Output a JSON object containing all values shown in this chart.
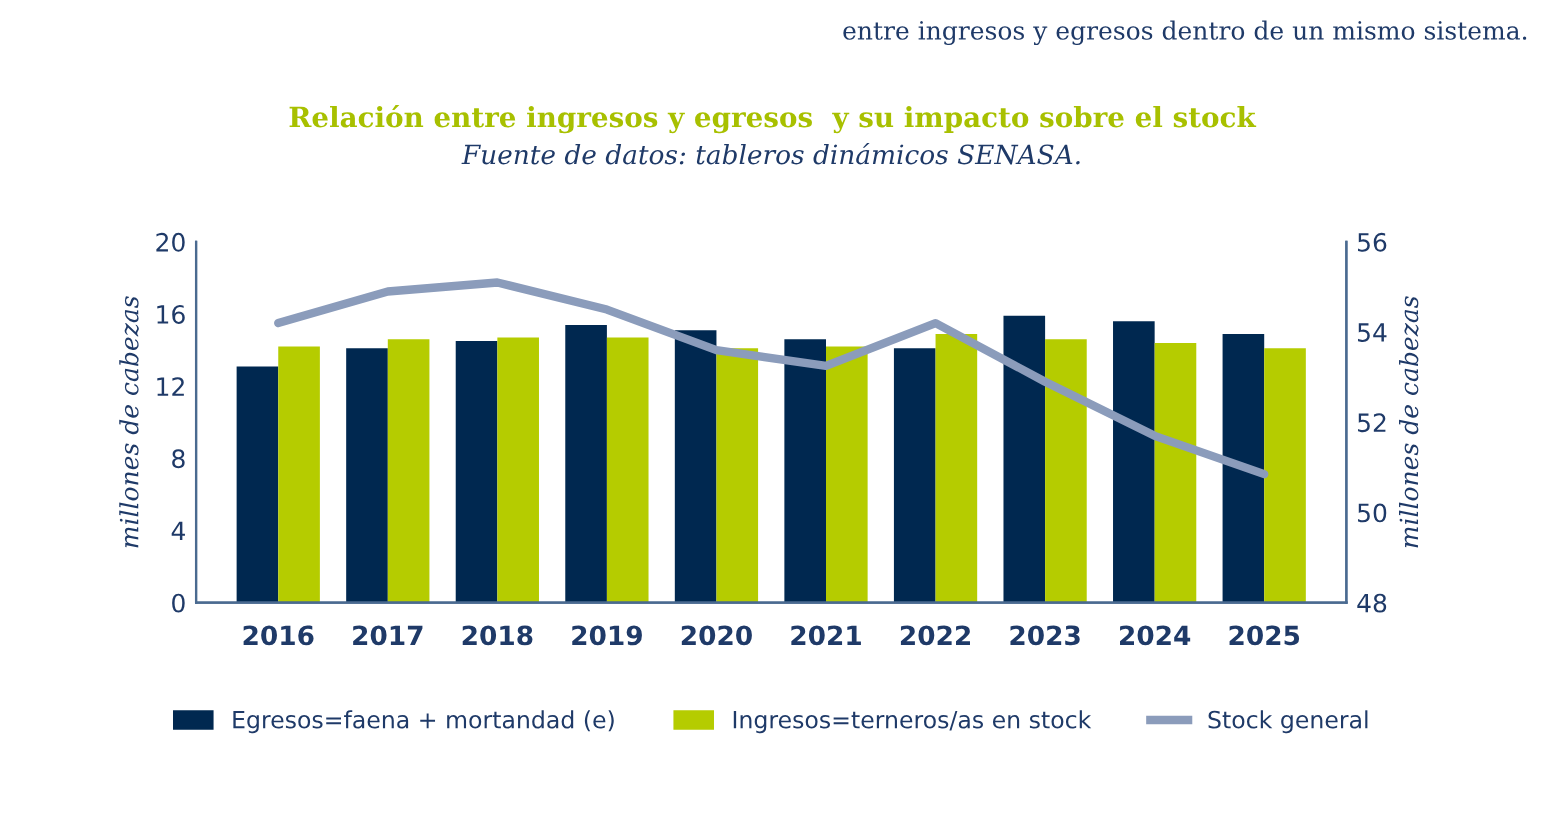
{
  "chart_data": {
    "type": "bar",
    "title": "Relación entre ingresos y egresos  y su impacto sobre el stock",
    "subtitle": "Fuente de datos: tableros dinámicos SENASA.",
    "annotations": [
      "entre ingresos y egresos dentro de un mismo sistema."
    ],
    "ylabel": "millones de cabezas",
    "y2label": "millones de cabezas",
    "categories": [
      "2016",
      "2017",
      "2018",
      "2019",
      "2020",
      "2021",
      "2022",
      "2023",
      "2024",
      "2025"
    ],
    "series": [
      {
        "name": "Egresos=faena + mortandad (e)",
        "color": "#002850",
        "values": [
          13.1,
          14.1,
          14.5,
          15.4,
          15.1,
          14.6,
          14.1,
          15.9,
          15.6,
          14.9
        ]
      },
      {
        "name": "Ingresos=terneros/as en stock",
        "color": "#b5cc00",
        "values": [
          14.2,
          14.6,
          14.7,
          14.7,
          14.1,
          14.2,
          14.9,
          14.6,
          14.4,
          14.1
        ]
      },
      {
        "name": "Stock general",
        "color": "#8b9cbb",
        "type": "line",
        "axis": "y2",
        "values": [
          54.2,
          54.9,
          55.1,
          54.5,
          53.6,
          53.25,
          54.2,
          52.9,
          51.7,
          50.85
        ]
      }
    ],
    "ylim": [
      0,
      20
    ],
    "yticks": [
      0,
      4,
      8,
      12,
      16,
      20
    ],
    "y2lim": [
      48,
      56
    ],
    "y2ticks": [
      48,
      50,
      52,
      54,
      56
    ],
    "grid": false,
    "legend": "bottom",
    "marker": "none",
    "line_style": "solid"
  }
}
